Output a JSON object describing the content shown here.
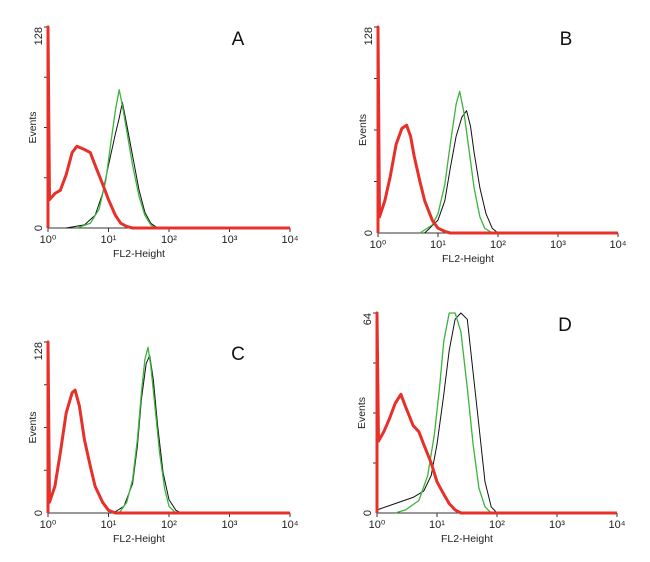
{
  "chart_data": [
    {
      "type": "line",
      "panel_label": "A",
      "xlabel": "FL2-Height",
      "ylabel": "Events",
      "x_scale": "log",
      "xlim": [
        1,
        10000
      ],
      "ylim": [
        0,
        128
      ],
      "x_tick_labels": [
        "10⁰",
        "10¹",
        "10²",
        "10³",
        "10⁴"
      ],
      "y_tick_labels": [
        "0",
        "128"
      ],
      "series": [
        {
          "color": "#e8302a",
          "points": [
            [
              1,
              128
            ],
            [
              1.02,
              18
            ],
            [
              1.3,
              22
            ],
            [
              1.6,
              24
            ],
            [
              2,
              34
            ],
            [
              2.5,
              48
            ],
            [
              3,
              52
            ],
            [
              4,
              50
            ],
            [
              5,
              48
            ],
            [
              6,
              40
            ],
            [
              8,
              28
            ],
            [
              10,
              18
            ],
            [
              13,
              8
            ],
            [
              16,
              3
            ],
            [
              20,
              1
            ],
            [
              25,
              0
            ],
            [
              10000,
              0
            ]
          ]
        },
        {
          "color": "#3cb43c",
          "points": [
            [
              3,
              0
            ],
            [
              5,
              3
            ],
            [
              7,
              12
            ],
            [
              9,
              30
            ],
            [
              11,
              55
            ],
            [
              13,
              75
            ],
            [
              15,
              88
            ],
            [
              17,
              78
            ],
            [
              20,
              62
            ],
            [
              25,
              40
            ],
            [
              32,
              20
            ],
            [
              40,
              8
            ],
            [
              50,
              2
            ],
            [
              60,
              0
            ]
          ]
        },
        {
          "color": "#111111",
          "points": [
            [
              2,
              0
            ],
            [
              4,
              2
            ],
            [
              6,
              8
            ],
            [
              8,
              22
            ],
            [
              10,
              40
            ],
            [
              13,
              60
            ],
            [
              15,
              70
            ],
            [
              17,
              80
            ],
            [
              20,
              66
            ],
            [
              25,
              46
            ],
            [
              32,
              24
            ],
            [
              40,
              10
            ],
            [
              50,
              3
            ],
            [
              65,
              0
            ]
          ]
        }
      ]
    },
    {
      "type": "line",
      "panel_label": "B",
      "xlabel": "FL2-Height",
      "ylabel": "Events",
      "x_scale": "log",
      "xlim": [
        1,
        10000
      ],
      "ylim": [
        0,
        128
      ],
      "x_tick_labels": [
        "10⁰",
        "10¹",
        "10²",
        "10³",
        "10⁴"
      ],
      "y_tick_labels": [
        "0",
        "128"
      ],
      "series": [
        {
          "color": "#e8302a",
          "points": [
            [
              1,
              128
            ],
            [
              1.02,
              10
            ],
            [
              1.3,
              20
            ],
            [
              1.6,
              35
            ],
            [
              2,
              55
            ],
            [
              2.5,
              65
            ],
            [
              3,
              67
            ],
            [
              3.5,
              60
            ],
            [
              4,
              48
            ],
            [
              5,
              32
            ],
            [
              6,
              20
            ],
            [
              8,
              8
            ],
            [
              10,
              3
            ],
            [
              13,
              1
            ],
            [
              16,
              0
            ],
            [
              10000,
              0
            ]
          ]
        },
        {
          "color": "#3cb43c",
          "points": [
            [
              5,
              0
            ],
            [
              8,
              5
            ],
            [
              10,
              12
            ],
            [
              13,
              30
            ],
            [
              16,
              55
            ],
            [
              20,
              80
            ],
            [
              23,
              88
            ],
            [
              27,
              75
            ],
            [
              32,
              55
            ],
            [
              40,
              28
            ],
            [
              50,
              10
            ],
            [
              60,
              3
            ],
            [
              80,
              0
            ]
          ]
        },
        {
          "color": "#111111",
          "points": [
            [
              6,
              0
            ],
            [
              10,
              8
            ],
            [
              13,
              20
            ],
            [
              16,
              40
            ],
            [
              20,
              60
            ],
            [
              25,
              72
            ],
            [
              30,
              76
            ],
            [
              35,
              66
            ],
            [
              40,
              50
            ],
            [
              50,
              28
            ],
            [
              63,
              12
            ],
            [
              80,
              3
            ],
            [
              100,
              0
            ]
          ]
        }
      ]
    },
    {
      "type": "line",
      "panel_label": "C",
      "xlabel": "FL2-Height",
      "ylabel": "Events",
      "x_scale": "log",
      "xlim": [
        1,
        10000
      ],
      "ylim": [
        0,
        128
      ],
      "x_tick_labels": [
        "10⁰",
        "10¹",
        "10²",
        "10³",
        "10⁴"
      ],
      "y_tick_labels": [
        "0",
        "128"
      ],
      "series": [
        {
          "color": "#e8302a",
          "points": [
            [
              1,
              128
            ],
            [
              1.02,
              8
            ],
            [
              1.3,
              20
            ],
            [
              1.6,
              45
            ],
            [
              2,
              75
            ],
            [
              2.5,
              90
            ],
            [
              2.8,
              92
            ],
            [
              3.3,
              80
            ],
            [
              4,
              55
            ],
            [
              5,
              35
            ],
            [
              6,
              20
            ],
            [
              8,
              8
            ],
            [
              10,
              2
            ],
            [
              13,
              0
            ],
            [
              10000,
              0
            ]
          ]
        },
        {
          "color": "#3cb43c",
          "points": [
            [
              15,
              0
            ],
            [
              20,
              8
            ],
            [
              25,
              25
            ],
            [
              30,
              55
            ],
            [
              35,
              90
            ],
            [
              40,
              115
            ],
            [
              45,
              124
            ],
            [
              50,
              110
            ],
            [
              60,
              75
            ],
            [
              70,
              45
            ],
            [
              85,
              18
            ],
            [
              100,
              5
            ],
            [
              130,
              0
            ]
          ]
        },
        {
          "color": "#111111",
          "points": [
            [
              12,
              0
            ],
            [
              18,
              5
            ],
            [
              25,
              22
            ],
            [
              30,
              50
            ],
            [
              35,
              85
            ],
            [
              42,
              112
            ],
            [
              48,
              118
            ],
            [
              55,
              100
            ],
            [
              65,
              65
            ],
            [
              80,
              30
            ],
            [
              100,
              10
            ],
            [
              130,
              2
            ],
            [
              160,
              0
            ]
          ]
        }
      ]
    },
    {
      "type": "line",
      "panel_label": "D",
      "xlabel": "FL2-Height",
      "ylabel": "Events",
      "x_scale": "log",
      "xlim": [
        1,
        10000
      ],
      "ylim": [
        0,
        64
      ],
      "x_tick_labels": [
        "10⁰",
        "10¹",
        "10²",
        "10³",
        "10⁴"
      ],
      "y_tick_labels": [
        "0",
        "64"
      ],
      "series": [
        {
          "color": "#e8302a",
          "points": [
            [
              1,
              64
            ],
            [
              1.02,
              23
            ],
            [
              1.3,
              26
            ],
            [
              1.6,
              30
            ],
            [
              2,
              35
            ],
            [
              2.5,
              38
            ],
            [
              3,
              34
            ],
            [
              4,
              28
            ],
            [
              5,
              26
            ],
            [
              6,
              22
            ],
            [
              8,
              16
            ],
            [
              10,
              10
            ],
            [
              13,
              6
            ],
            [
              16,
              3
            ],
            [
              20,
              1
            ],
            [
              25,
              0
            ],
            [
              10000,
              0
            ]
          ]
        },
        {
          "color": "#3cb43c",
          "points": [
            [
              2,
              0
            ],
            [
              3,
              1
            ],
            [
              5,
              4
            ],
            [
              7,
              12
            ],
            [
              9,
              25
            ],
            [
              11,
              40
            ],
            [
              13,
              55
            ],
            [
              16,
              64
            ],
            [
              20,
              64
            ],
            [
              25,
              58
            ],
            [
              32,
              40
            ],
            [
              40,
              22
            ],
            [
              50,
              8
            ],
            [
              63,
              2
            ],
            [
              80,
              0
            ]
          ]
        },
        {
          "color": "#111111",
          "points": [
            [
              1,
              1
            ],
            [
              2,
              3
            ],
            [
              4,
              5
            ],
            [
              6,
              7
            ],
            [
              8,
              12
            ],
            [
              10,
              22
            ],
            [
              13,
              38
            ],
            [
              16,
              52
            ],
            [
              20,
              62
            ],
            [
              25,
              64
            ],
            [
              32,
              62
            ],
            [
              40,
              45
            ],
            [
              50,
              28
            ],
            [
              63,
              10
            ],
            [
              80,
              2
            ],
            [
              100,
              0
            ]
          ]
        }
      ]
    }
  ]
}
